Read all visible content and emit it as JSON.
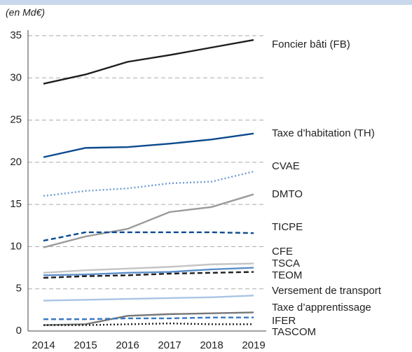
{
  "chart_data": {
    "type": "line",
    "subtitle": "(en Md€)",
    "x": [
      2014,
      2015,
      2016,
      2017,
      2018,
      2019
    ],
    "xlim": [
      2014,
      2019
    ],
    "xticks": [
      2014,
      2015,
      2016,
      2017,
      2018,
      2019
    ],
    "ylim": [
      0,
      35
    ],
    "yticks": [
      0,
      5,
      10,
      15,
      20,
      25,
      30,
      35
    ],
    "grid": true,
    "series": [
      {
        "name": "Foncier bâti (FB)",
        "color": "#1e1e1e",
        "dash": "solid",
        "values": [
          29.3,
          30.4,
          31.9,
          32.7,
          33.6,
          34.5
        ]
      },
      {
        "name": "Taxe d’habitation (TH)",
        "color": "#0b4a8e",
        "dash": "solid",
        "values": [
          20.6,
          21.7,
          21.8,
          22.2,
          22.7,
          23.4
        ]
      },
      {
        "name": "CVAE",
        "color": "#6f9bd1",
        "dash": "dotted",
        "values": [
          16.0,
          16.6,
          16.9,
          17.5,
          17.7,
          18.9
        ]
      },
      {
        "name": "DMTO",
        "color": "#9a9a9a",
        "dash": "solid",
        "values": [
          9.9,
          11.2,
          12.1,
          14.1,
          14.7,
          16.2
        ]
      },
      {
        "name": "TICPE",
        "color": "#0b4a8e",
        "dash": "dashed",
        "values": [
          10.7,
          11.7,
          11.7,
          11.7,
          11.7,
          11.6
        ]
      },
      {
        "name": "CFE",
        "color": "#c4c4c4",
        "dash": "solid",
        "values": [
          6.9,
          7.2,
          7.4,
          7.6,
          7.9,
          8.0
        ]
      },
      {
        "name": "TSCA",
        "color": "#5b8fc9",
        "dash": "solid",
        "values": [
          6.6,
          6.7,
          6.9,
          7.0,
          7.3,
          7.5
        ]
      },
      {
        "name": "TEOM",
        "color": "#1e1e1e",
        "dash": "dashed",
        "values": [
          6.3,
          6.5,
          6.6,
          6.8,
          6.9,
          7.0
        ]
      },
      {
        "name": "Versement de transport",
        "color": "#a9c4e4",
        "dash": "solid",
        "values": [
          3.6,
          3.7,
          3.8,
          3.9,
          4.0,
          4.2
        ]
      },
      {
        "name": "Taxe d’apprentissage",
        "color": "#777777",
        "dash": "solid",
        "values": [
          0.7,
          0.8,
          1.8,
          2.0,
          2.1,
          2.2
        ]
      },
      {
        "name": "IFER",
        "color": "#3a78c2",
        "dash": "dashed",
        "values": [
          1.4,
          1.4,
          1.5,
          1.5,
          1.6,
          1.6
        ]
      },
      {
        "name": "TASCOM",
        "color": "#1e1e1e",
        "dash": "dotted",
        "values": [
          0.7,
          0.7,
          0.8,
          0.9,
          0.8,
          0.8
        ]
      }
    ]
  }
}
